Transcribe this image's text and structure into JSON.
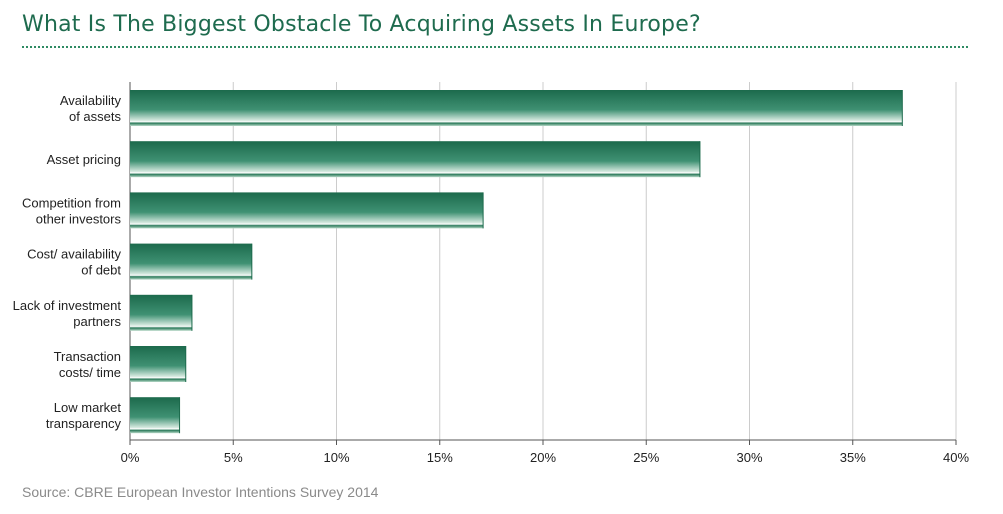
{
  "page": {
    "title": "What Is The Biggest Obstacle To Acquiring Assets In Europe?",
    "source": "Source: CBRE European Investor Intentions Survey 2014"
  },
  "colors": {
    "title": "#1e6b4e",
    "bar_dark": "#1c6a4c",
    "bar_light": "#e9f3ee",
    "grid": "#cccccc",
    "axis": "#555555"
  },
  "chart_data": {
    "type": "bar",
    "orientation": "horizontal",
    "title": "What Is The Biggest Obstacle To Acquiring Assets In Europe?",
    "categories": [
      [
        "Availability",
        "of assets"
      ],
      [
        "Asset pricing"
      ],
      [
        "Competition from",
        "other investors"
      ],
      [
        "Cost/ availability",
        "of debt"
      ],
      [
        "Lack of investment",
        "partners"
      ],
      [
        "Transaction",
        "costs/ time"
      ],
      [
        "Low market",
        "transparency"
      ]
    ],
    "values": [
      37.4,
      27.6,
      17.1,
      5.9,
      3.0,
      2.7,
      2.4
    ],
    "xlim": [
      0,
      40
    ],
    "xticks": [
      0,
      5,
      10,
      15,
      20,
      25,
      30,
      35,
      40
    ],
    "xtick_labels": [
      "0%",
      "5%",
      "10%",
      "15%",
      "20%",
      "25%",
      "30%",
      "35%",
      "40%"
    ],
    "xlabel": "",
    "ylabel": "",
    "grid": true,
    "legend": "none"
  }
}
